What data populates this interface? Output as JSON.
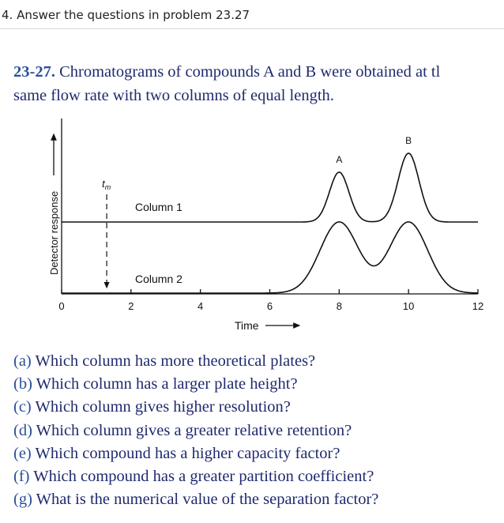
{
  "header": "4. Answer the questions in problem 23.27",
  "problem": {
    "number": "23-27.",
    "line1": "Chromatograms of compounds A and B were obtained at tl",
    "line2": "same flow rate with two columns of equal length."
  },
  "figure": {
    "y_label": "Detector response",
    "x_label": "Time",
    "tm_label": "t",
    "tm_sub": "m",
    "column1_label": "Column 1",
    "column2_label": "Column 2",
    "peak_a_label": "A",
    "peak_b_label": "B",
    "x_ticks": [
      "0",
      "2",
      "4",
      "6",
      "8",
      "10",
      "12"
    ],
    "xlim": [
      0,
      12
    ],
    "t_m": 1.3,
    "column1": {
      "baseline": 0.62,
      "peaks": [
        {
          "name": "A",
          "t": 8.0,
          "height": 0.42,
          "sigma": 0.28
        },
        {
          "name": "B",
          "t": 10.0,
          "height": 0.58,
          "sigma": 0.3
        }
      ]
    },
    "column2": {
      "baseline": 0.0,
      "peaks": [
        {
          "name": "A",
          "t": 8.0,
          "height": 0.6,
          "sigma": 0.55
        },
        {
          "name": "B",
          "t": 10.0,
          "height": 0.6,
          "sigma": 0.55
        }
      ]
    }
  },
  "questions": [
    {
      "label": "(a)",
      "text": "Which column has more theoretical plates?"
    },
    {
      "label": "(b)",
      "text": "Which column has a larger plate height?"
    },
    {
      "label": "(c)",
      "text": "Which column gives higher resolution?"
    },
    {
      "label": "(d)",
      "text": "Which column gives a greater relative retention?"
    },
    {
      "label": "(e)",
      "text": "Which compound has a higher capacity factor?"
    },
    {
      "label": "(f)",
      "text": "Which compound has a greater partition coefficient?"
    },
    {
      "label": "(g)",
      "text": "What is the numerical value of the separation factor?"
    }
  ]
}
